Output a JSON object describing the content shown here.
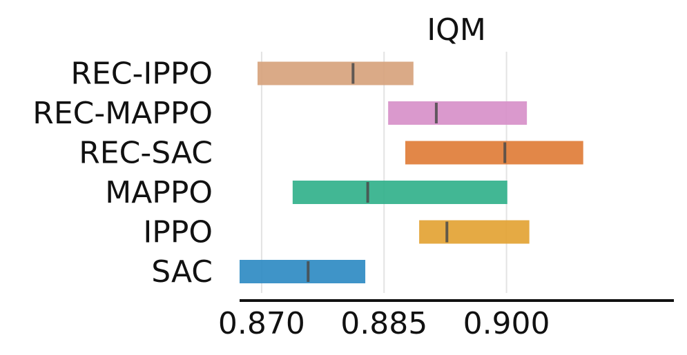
{
  "chart_data": {
    "type": "interval",
    "title": "IQM",
    "xlabel": "",
    "ylabel": "",
    "xlim": [
      0.8673,
      0.9178
    ],
    "xticks": [
      {
        "value": 0.87,
        "label": "0.870"
      },
      {
        "value": 0.885,
        "label": "0.885"
      },
      {
        "value": 0.9,
        "label": "0.900"
      }
    ],
    "grid": true,
    "series": [
      {
        "name": "REC-IPPO",
        "low": 0.8695,
        "high": 0.8886,
        "point": 0.8812,
        "color": "#d6a17a"
      },
      {
        "name": "REC-MAPPO",
        "low": 0.8855,
        "high": 0.9025,
        "point": 0.8914,
        "color": "#d68ec8"
      },
      {
        "name": "REC-SAC",
        "low": 0.8876,
        "high": 0.9094,
        "point": 0.8998,
        "color": "#df7a34"
      },
      {
        "name": "MAPPO",
        "low": 0.8738,
        "high": 0.9001,
        "point": 0.883,
        "color": "#2eaf88"
      },
      {
        "name": "IPPO",
        "low": 0.8893,
        "high": 0.9028,
        "point": 0.8927,
        "color": "#e2a130"
      },
      {
        "name": "SAC",
        "low": 0.8673,
        "high": 0.8827,
        "point": 0.8757,
        "color": "#2a88c2"
      }
    ]
  }
}
